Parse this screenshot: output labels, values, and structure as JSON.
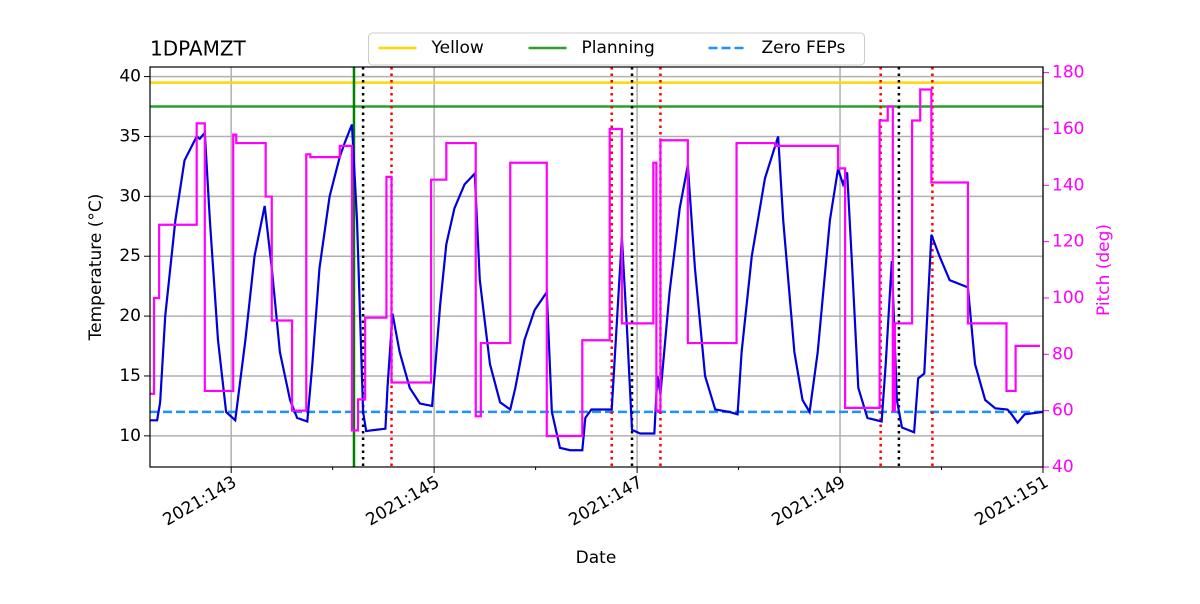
{
  "chart_data": {
    "type": "line",
    "title": "1DPAMZT",
    "xlabel": "Date",
    "ylabel": "Temperature (°C)",
    "y2label": "Pitch (deg)",
    "xlim": [
      142.2,
      151
    ],
    "xticks": [
      {
        "value": 143,
        "label": "2021:143"
      },
      {
        "value": 145,
        "label": "2021:145"
      },
      {
        "value": 147,
        "label": "2021:147"
      },
      {
        "value": 149,
        "label": "2021:149"
      },
      {
        "value": 151,
        "label": "2021:151"
      }
    ],
    "xminorticks": [
      144,
      146,
      148,
      150
    ],
    "ylim": [
      7.4,
      40.8
    ],
    "yticks": [
      10,
      15,
      20,
      25,
      30,
      35,
      40
    ],
    "y2lim": [
      40,
      182
    ],
    "y2ticks": [
      40,
      60,
      80,
      100,
      120,
      140,
      160,
      180
    ],
    "grid": true,
    "legend": "upper center",
    "hlines": [
      {
        "name": "Yellow",
        "value": 39.5,
        "color": "#ffd700",
        "style": "solid"
      },
      {
        "name": "Planning",
        "value": 37.5,
        "color": "#2ca02c",
        "style": "solid"
      },
      {
        "name": "Zero FEPs",
        "value": 12,
        "color": "#1e90ff",
        "style": "dashed"
      }
    ],
    "vlines": [
      {
        "value": 144.21,
        "color": "#008000",
        "style": "solid"
      },
      {
        "value": 144.3,
        "color": "#000000",
        "style": "dotted"
      },
      {
        "value": 146.95,
        "color": "#000000",
        "style": "dotted"
      },
      {
        "value": 149.58,
        "color": "#000000",
        "style": "dotted"
      },
      {
        "value": 144.58,
        "color": "#ff0000",
        "style": "dotted"
      },
      {
        "value": 146.75,
        "color": "#ff0000",
        "style": "dotted"
      },
      {
        "value": 147.23,
        "color": "#ff0000",
        "style": "dotted"
      },
      {
        "value": 149.4,
        "color": "#ff0000",
        "style": "dotted"
      },
      {
        "value": 149.91,
        "color": "#ff0000",
        "style": "dotted"
      }
    ],
    "series": [
      {
        "color": "#0000dd",
        "axis": "y",
        "x": [
          142.2,
          142.27,
          142.3,
          142.35,
          142.45,
          142.54,
          142.66,
          142.69,
          142.74,
          142.79,
          142.87,
          142.95,
          143.04,
          143.14,
          143.23,
          143.33,
          143.4,
          143.48,
          143.58,
          143.65,
          143.75,
          143.8,
          143.87,
          143.97,
          144.07,
          144.12,
          144.19,
          144.24,
          144.3,
          144.33,
          144.42,
          144.52,
          144.54,
          144.59,
          144.66,
          144.76,
          144.86,
          144.98,
          145.06,
          145.12,
          145.2,
          145.3,
          145.4,
          145.45,
          145.55,
          145.65,
          145.75,
          145.8,
          145.89,
          145.99,
          146.11,
          146.16,
          146.24,
          146.34,
          146.46,
          146.49,
          146.55,
          146.75,
          146.85,
          146.9,
          146.95,
          147.03,
          147.17,
          147.2,
          147.23,
          147.32,
          147.42,
          147.5,
          147.57,
          147.67,
          147.77,
          147.91,
          147.99,
          148.03,
          148.13,
          148.26,
          148.39,
          148.44,
          148.55,
          148.63,
          148.7,
          148.78,
          148.9,
          148.98,
          149.03,
          149.07,
          149.12,
          149.18,
          149.27,
          149.41,
          149.45,
          149.51,
          149.56,
          149.61,
          149.73,
          149.77,
          149.83,
          149.9,
          149.98,
          150.08,
          150.26,
          150.33,
          150.43,
          150.53,
          150.65,
          150.69,
          150.75,
          150.82,
          151.0
        ],
        "values": [
          11.3,
          11.3,
          12.8,
          20,
          28,
          33,
          35,
          34.8,
          35.3,
          28,
          18,
          12,
          11.3,
          18,
          25,
          29.2,
          24,
          17,
          13,
          11.5,
          11.2,
          16,
          24,
          30,
          33.3,
          34.5,
          36,
          28,
          12,
          10.4,
          10.5,
          10.6,
          14,
          20.2,
          17,
          14,
          12.7,
          12.5,
          21,
          26,
          29,
          31,
          31.9,
          23,
          16,
          12.8,
          12.2,
          14,
          18,
          20.5,
          22,
          12,
          9,
          8.8,
          8.8,
          11.5,
          12.2,
          12.2,
          26.6,
          19,
          10.5,
          10.2,
          10.2,
          15,
          13.5,
          22,
          29,
          32.6,
          24,
          15,
          12.2,
          12,
          11.8,
          17,
          25,
          31.5,
          35,
          28,
          17,
          13,
          12,
          17,
          28,
          32.3,
          31,
          32,
          24,
          14,
          11.5,
          11.2,
          16,
          24.6,
          13,
          10.7,
          10.3,
          14.8,
          15.2,
          26.8,
          25,
          23,
          22.4,
          16,
          13,
          12.3,
          12.2,
          11.8,
          11.1,
          11.8,
          12
        ]
      },
      {
        "color": "#ff00ff",
        "axis": "y2",
        "x": [
          142.2,
          142.24,
          142.24,
          142.29,
          142.29,
          142.66,
          142.66,
          142.74,
          142.74,
          143.02,
          143.02,
          143.05,
          143.05,
          143.34,
          143.34,
          143.4,
          143.4,
          143.6,
          143.6,
          143.74,
          143.74,
          143.78,
          143.78,
          144.07,
          144.07,
          144.19,
          144.19,
          144.25,
          144.25,
          144.32,
          144.32,
          144.53,
          144.53,
          144.58,
          144.58,
          144.97,
          144.97,
          145.12,
          145.12,
          145.41,
          145.41,
          145.46,
          145.46,
          145.75,
          145.75,
          146.11,
          146.11,
          146.46,
          146.46,
          146.73,
          146.73,
          146.85,
          146.85,
          147.16,
          147.16,
          147.19,
          147.19,
          147.23,
          147.23,
          147.5,
          147.5,
          147.98,
          147.98,
          148.36,
          148.36,
          148.98,
          148.98,
          149.05,
          149.05,
          149.39,
          149.39,
          149.47,
          149.47,
          149.52,
          149.52,
          149.54,
          149.54,
          149.71,
          149.71,
          149.79,
          149.79,
          149.9,
          149.9,
          150.26,
          150.26,
          150.64,
          150.64,
          150.73,
          150.73,
          150.97
        ],
        "values": [
          66,
          66,
          100,
          100,
          126,
          126,
          162,
          162,
          67,
          67,
          158,
          158,
          155,
          155,
          136,
          136,
          92,
          92,
          60,
          60,
          151,
          151,
          150,
          150,
          154,
          154,
          53,
          53,
          64,
          64,
          93,
          93,
          143,
          143,
          70,
          70,
          142,
          142,
          155,
          155,
          58,
          58,
          84,
          84,
          148,
          148,
          51,
          51,
          85,
          85,
          160,
          160,
          91,
          91,
          148,
          148,
          60,
          60,
          156,
          156,
          84,
          84,
          155,
          155,
          154,
          154,
          146,
          146,
          61,
          61,
          163,
          163,
          168,
          168,
          60,
          60,
          91,
          91,
          163,
          163,
          174,
          174,
          141,
          141,
          91,
          91,
          67,
          67,
          83,
          83
        ]
      }
    ]
  }
}
